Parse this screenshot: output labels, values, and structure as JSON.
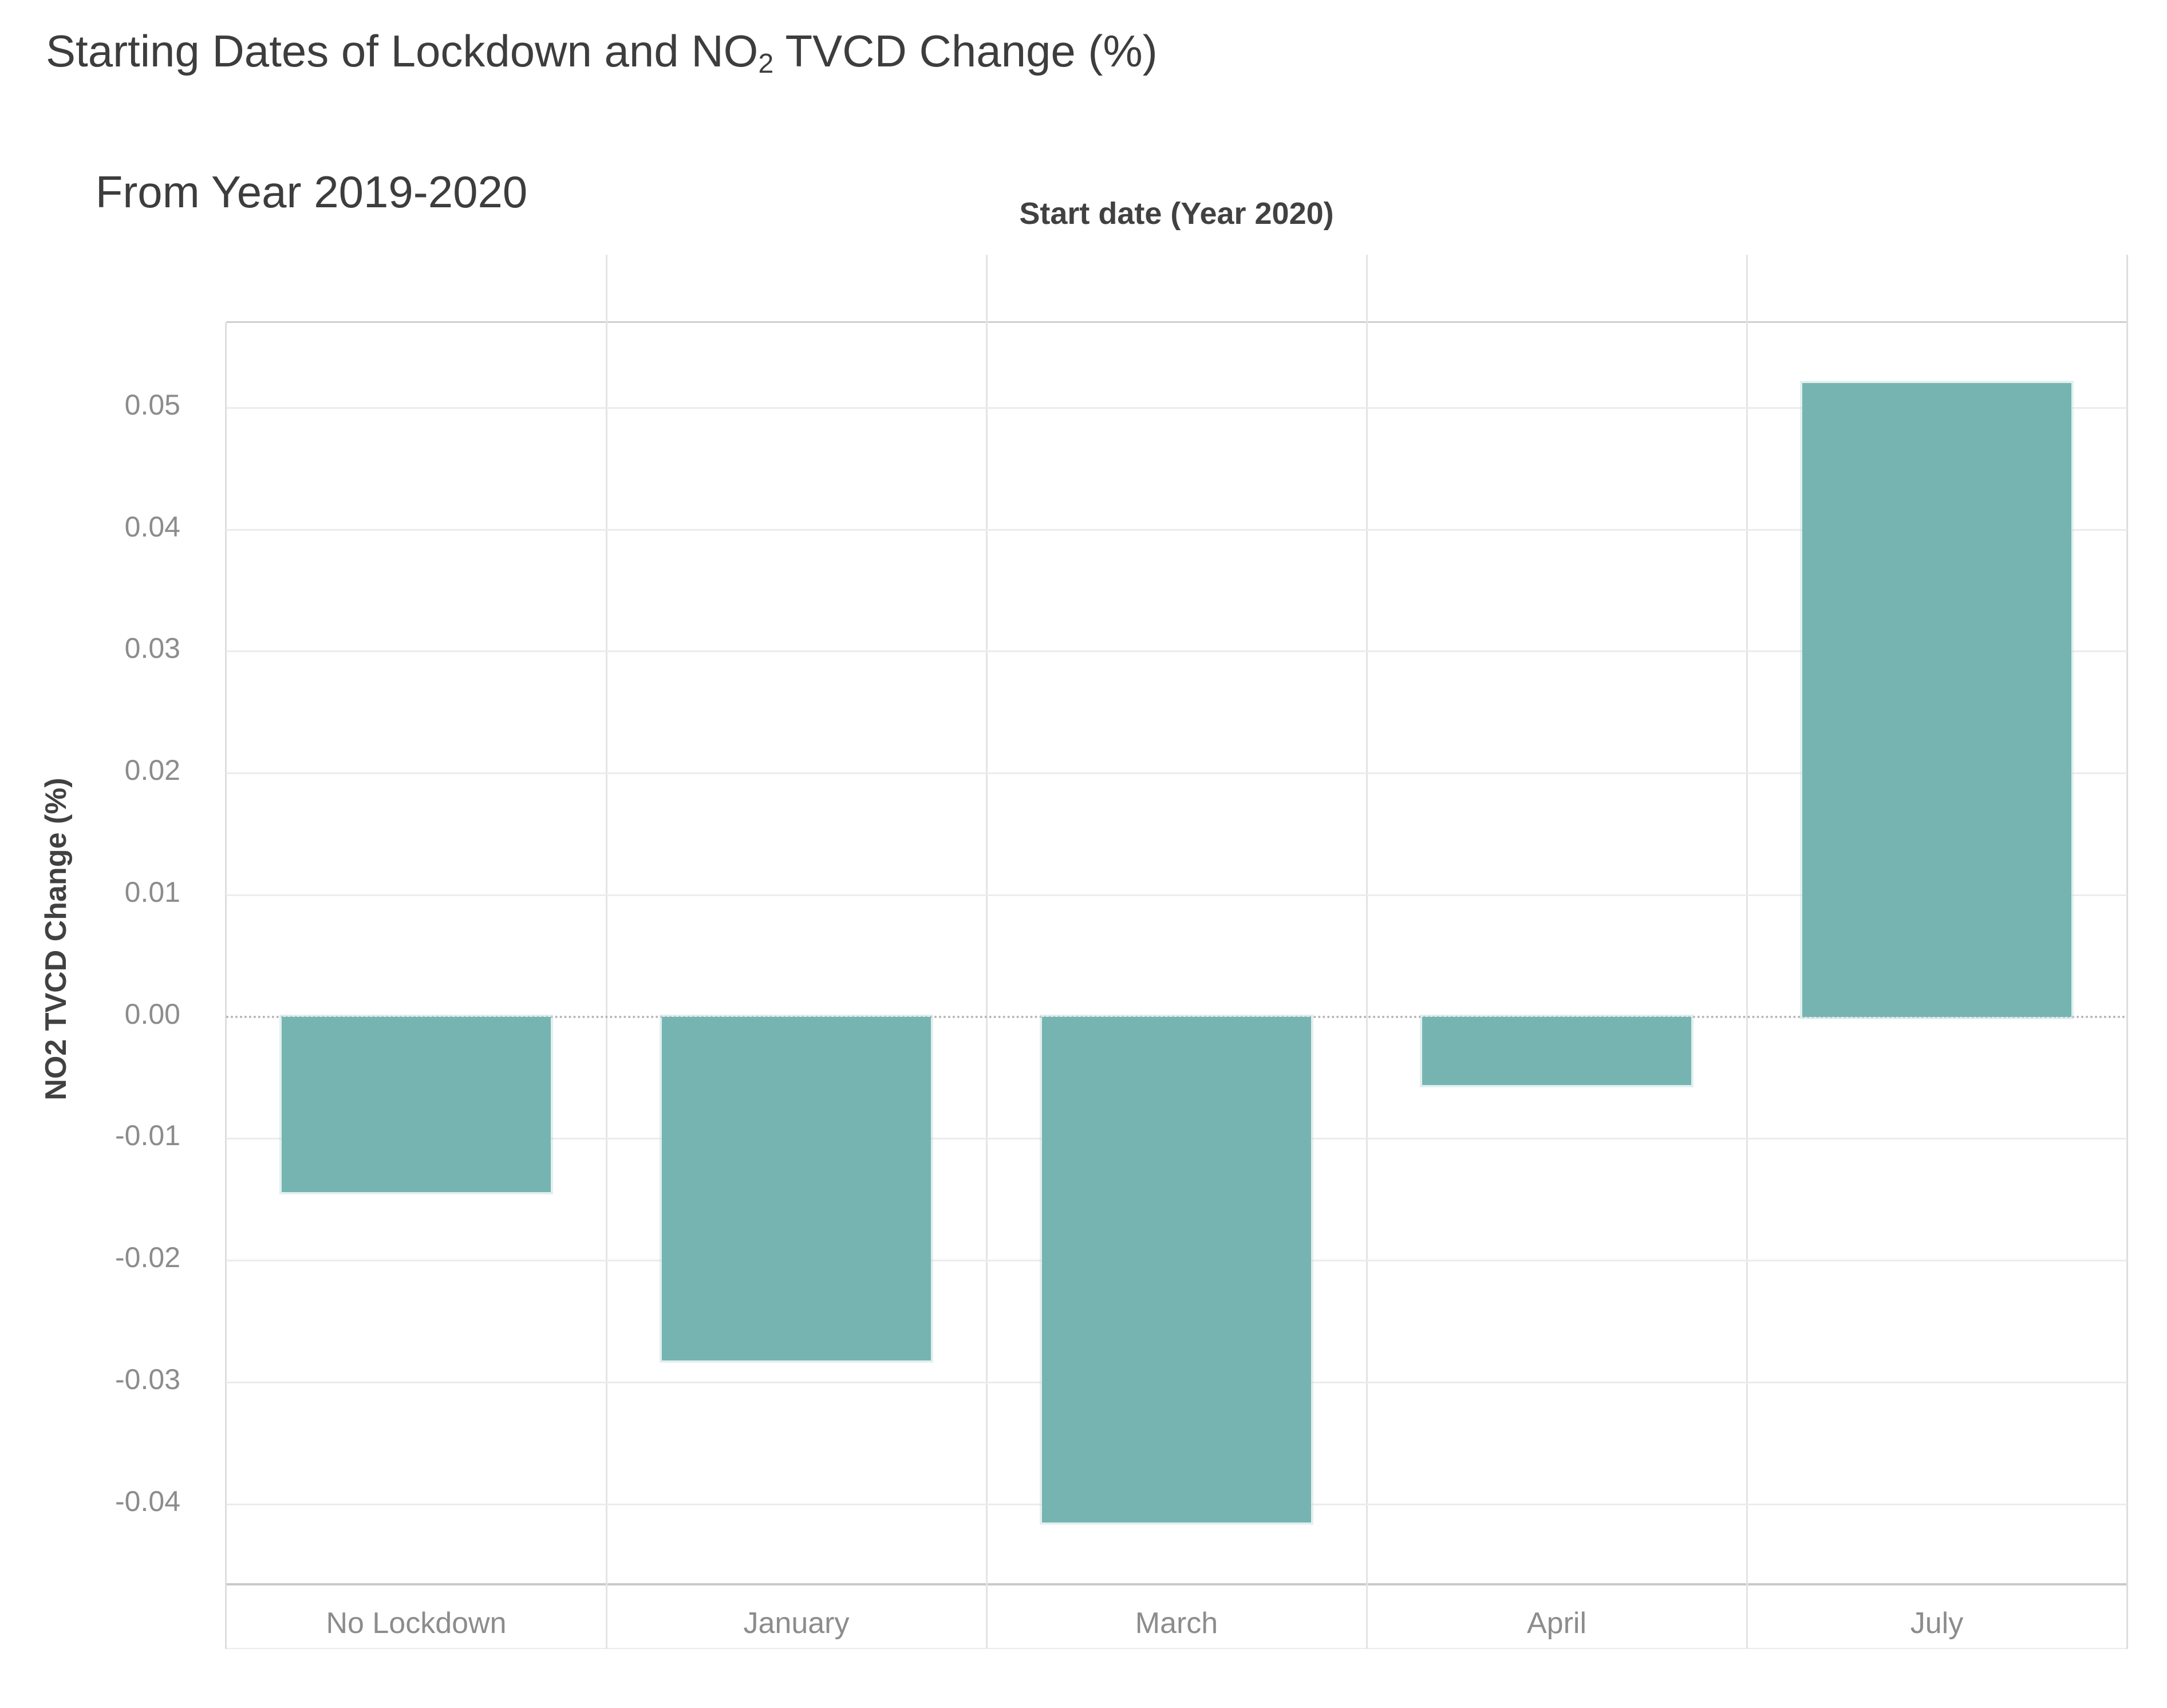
{
  "title": {
    "line1_prefix": "Starting Dates of Lockdown and NO",
    "line1_sub": "2",
    "line1_suffix": " TVCD Change (%)",
    "line2": "From Year 2019-2020"
  },
  "chart_data": {
    "type": "bar",
    "title": "Starting Dates of Lockdown and NO2 TVCD Change (%) From Year 2019-2020",
    "x_axis_title": "Start date (Year 2020)",
    "y_axis_title": "NO2 TVCD Change (%)",
    "categories": [
      "No Lockdown",
      "January",
      "March",
      "April",
      "July"
    ],
    "values": [
      -0.0144,
      -0.0282,
      -0.0415,
      -0.0056,
      0.052
    ],
    "y_ticks": [
      {
        "label": "0.05",
        "value": 0.05
      },
      {
        "label": "0.04",
        "value": 0.04
      },
      {
        "label": "0.03",
        "value": 0.03
      },
      {
        "label": "0.02",
        "value": 0.02
      },
      {
        "label": "0.01",
        "value": 0.01
      },
      {
        "label": "0.00",
        "value": 0.0
      },
      {
        "label": "-0.01",
        "value": -0.01
      },
      {
        "label": "-0.02",
        "value": -0.02
      },
      {
        "label": "-0.03",
        "value": -0.03
      },
      {
        "label": "-0.04",
        "value": -0.04
      }
    ],
    "ylim": [
      -0.0465,
      0.057
    ],
    "grid": true,
    "zero_line": "dotted",
    "legend": "none",
    "bar_color": "#76b4b1"
  }
}
